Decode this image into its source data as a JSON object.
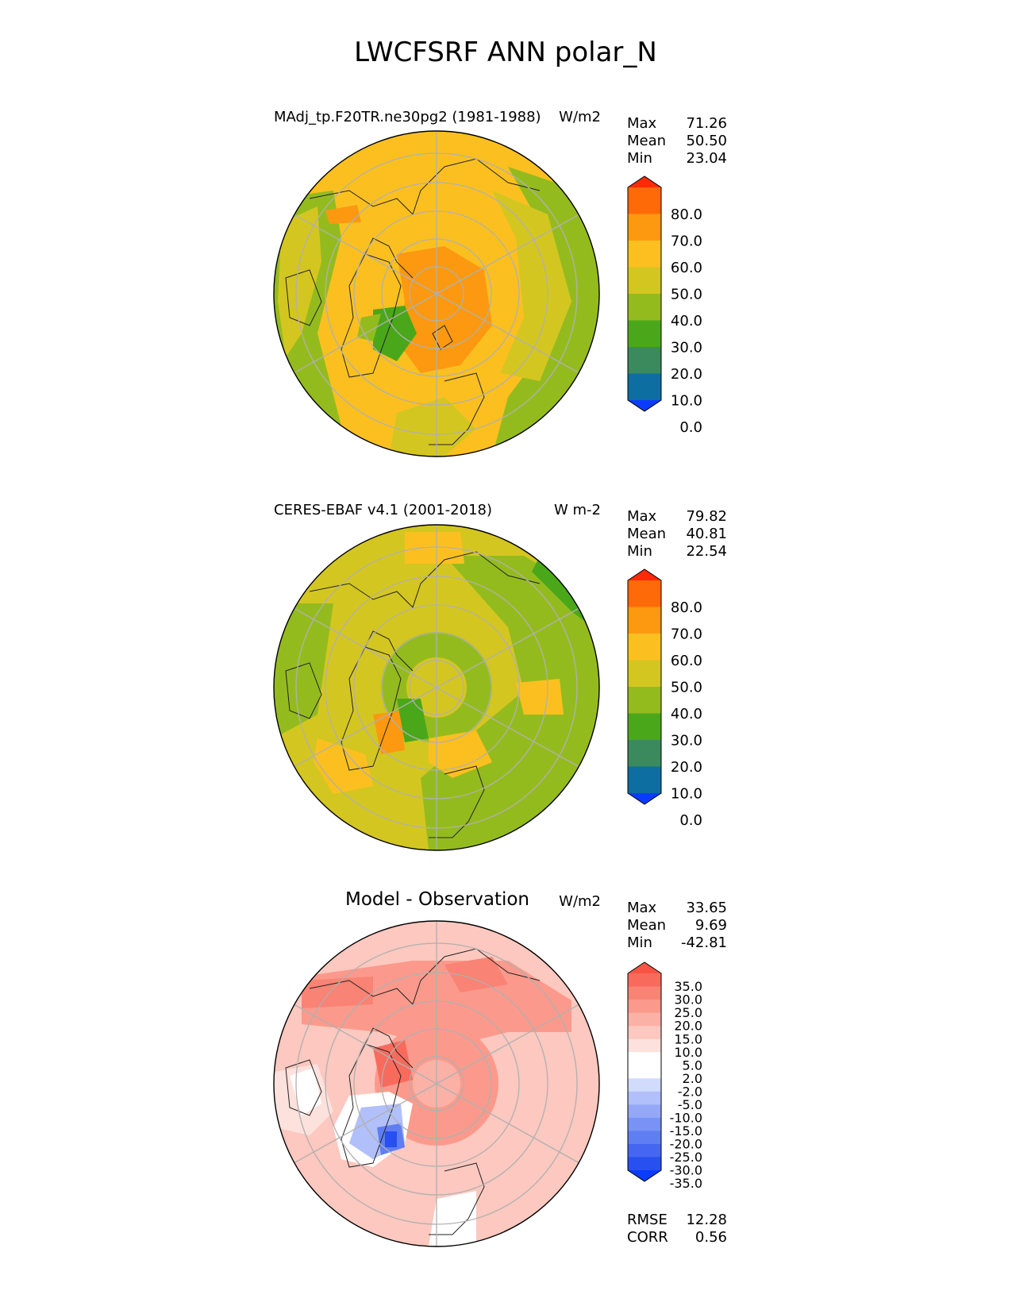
{
  "figure": {
    "title": "LWCFSRF ANN polar_N"
  },
  "colors": {
    "abs_levels": [
      "#0a3cff",
      "#0c6ea1",
      "#3a8a5e",
      "#4aa71a",
      "#94bb1e",
      "#d4c620",
      "#fbc020",
      "#fc9910",
      "#ff6a08",
      "#ff2a08"
    ],
    "diff_levels": [
      "#0a3cff",
      "#2850f0",
      "#4466f0",
      "#5f7ef2",
      "#7893f5",
      "#94a8f7",
      "#b1c0fa",
      "#d1dbfc",
      "#ffffff",
      "#ffffff",
      "#fde1dc",
      "#fcc8bf",
      "#fcb1a6",
      "#fb9a8c",
      "#f98374",
      "#f86b5c",
      "#f75444",
      "#f23a25",
      "#ff2a08"
    ],
    "grid": "#b0b0b0",
    "coast": "#222222"
  },
  "chart_data": [
    {
      "type": "heatmap",
      "projection": "north-polar-stereographic",
      "title": "MAdj_tp.F20TR.ne30pg2 (1981-1988)",
      "units": "W/m2",
      "stats": [
        {
          "label": "Max",
          "value": "71.26"
        },
        {
          "label": "Mean",
          "value": "50.50"
        },
        {
          "label": "Min",
          "value": "23.04"
        }
      ],
      "colorbar": {
        "levels": [
          0,
          10,
          20,
          30,
          40,
          50,
          60,
          70,
          80
        ],
        "ticks": [
          "80.0",
          "70.0",
          "60.0",
          "50.0",
          "40.0",
          "30.0",
          "20.0",
          "10.0",
          "0.0"
        ],
        "extend": "both"
      }
    },
    {
      "type": "heatmap",
      "projection": "north-polar-stereographic",
      "title": "CERES-EBAF v4.1 (2001-2018)",
      "units": "W m-2",
      "stats": [
        {
          "label": "Max",
          "value": "79.82"
        },
        {
          "label": "Mean",
          "value": "40.81"
        },
        {
          "label": "Min",
          "value": "22.54"
        }
      ],
      "colorbar": {
        "levels": [
          0,
          10,
          20,
          30,
          40,
          50,
          60,
          70,
          80
        ],
        "ticks": [
          "80.0",
          "70.0",
          "60.0",
          "50.0",
          "40.0",
          "30.0",
          "20.0",
          "10.0",
          "0.0"
        ],
        "extend": "both"
      }
    },
    {
      "type": "heatmap",
      "projection": "north-polar-stereographic",
      "title": "Model - Observation",
      "units": "W/m2",
      "stats": [
        {
          "label": "Max",
          "value": "33.65"
        },
        {
          "label": "Mean",
          "value": "9.69"
        },
        {
          "label": "Min",
          "value": "-42.81"
        }
      ],
      "colorbar": {
        "levels": [
          -35,
          -30,
          -25,
          -20,
          -15,
          -10,
          -5,
          -2,
          2,
          5,
          10,
          15,
          20,
          25,
          30,
          35
        ],
        "ticks": [
          "35.0",
          "30.0",
          "25.0",
          "20.0",
          "15.0",
          "10.0",
          "5.0",
          "2.0",
          "-2.0",
          "-5.0",
          "-10.0",
          "-15.0",
          "-20.0",
          "-25.0",
          "-30.0",
          "-35.0"
        ],
        "extend": "both"
      },
      "metrics": [
        {
          "label": "RMSE",
          "value": "12.28"
        },
        {
          "label": "CORR",
          "value": "0.56"
        }
      ]
    }
  ]
}
